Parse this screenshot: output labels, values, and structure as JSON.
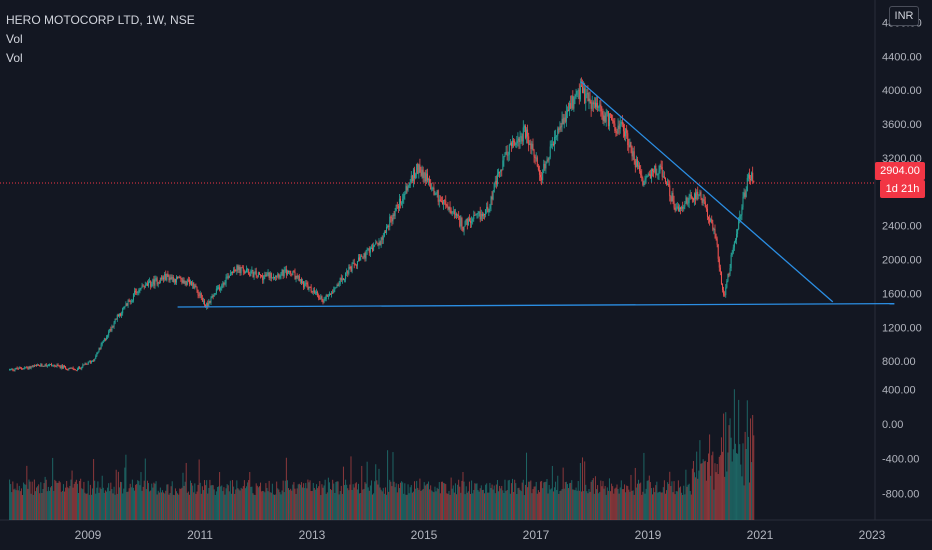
{
  "legend": {
    "title": "HERO MOTOCORP LTD, 1W, NSE",
    "line2": "Vol",
    "line3": "Vol"
  },
  "currency": "INR",
  "last_price_label": "2904.00",
  "countdown_label": "1d 21h",
  "colors": {
    "background": "#131722",
    "up": "#26a69a",
    "down": "#ef5350",
    "trendline": "#2b8ee3",
    "price_line": "#f23645"
  },
  "chart_data": {
    "type": "candlestick",
    "title": "HERO MOTOCORP LTD, 1W, NSE",
    "x_ticks": [
      "2009",
      "2011",
      "2013",
      "2015",
      "2017",
      "2019",
      "2021",
      "2023"
    ],
    "price_axis_ticks": [
      4800,
      4400,
      4000,
      3600,
      3200,
      2800,
      2400,
      2000,
      1600,
      1200,
      800
    ],
    "price_axis_labels": [
      "4800.00",
      "4400.00",
      "4000.00",
      "3600.00",
      "3200.00",
      "2800.00",
      "2400.00",
      "2000.00",
      "1600.00",
      "1200.00",
      "800.00"
    ],
    "volume_axis_ticks": [
      400,
      0,
      -400,
      -800
    ],
    "volume_axis_labels": [
      "400.00",
      "0.00",
      "-400.00",
      "-800.00"
    ],
    "last_price": 2904,
    "price_path": [
      {
        "t": 2007.6,
        "p": 700
      },
      {
        "t": 2008.3,
        "p": 760
      },
      {
        "t": 2008.8,
        "p": 700
      },
      {
        "t": 2009.1,
        "p": 820
      },
      {
        "t": 2009.5,
        "p": 1300
      },
      {
        "t": 2009.9,
        "p": 1650
      },
      {
        "t": 2010.4,
        "p": 1800
      },
      {
        "t": 2010.9,
        "p": 1700
      },
      {
        "t": 2011.1,
        "p": 1450
      },
      {
        "t": 2011.6,
        "p": 1900
      },
      {
        "t": 2012.1,
        "p": 1800
      },
      {
        "t": 2012.6,
        "p": 1850
      },
      {
        "t": 2013.2,
        "p": 1520
      },
      {
        "t": 2013.7,
        "p": 1900
      },
      {
        "t": 2014.2,
        "p": 2200
      },
      {
        "t": 2014.5,
        "p": 2600
      },
      {
        "t": 2014.9,
        "p": 3100
      },
      {
        "t": 2015.3,
        "p": 2700
      },
      {
        "t": 2015.7,
        "p": 2400
      },
      {
        "t": 2016.1,
        "p": 2550
      },
      {
        "t": 2016.5,
        "p": 3300
      },
      {
        "t": 2016.8,
        "p": 3500
      },
      {
        "t": 2017.1,
        "p": 3000
      },
      {
        "t": 2017.4,
        "p": 3500
      },
      {
        "t": 2017.75,
        "p": 4000
      },
      {
        "t": 2018.2,
        "p": 3700
      },
      {
        "t": 2018.6,
        "p": 3500
      },
      {
        "t": 2018.9,
        "p": 2900
      },
      {
        "t": 2019.2,
        "p": 3100
      },
      {
        "t": 2019.5,
        "p": 2600
      },
      {
        "t": 2019.9,
        "p": 2800
      },
      {
        "t": 2020.2,
        "p": 2300
      },
      {
        "t": 2020.35,
        "p": 1550
      },
      {
        "t": 2020.6,
        "p": 2400
      },
      {
        "t": 2020.8,
        "p": 3000
      },
      {
        "t": 2020.9,
        "p": 2904
      }
    ],
    "trendlines": [
      {
        "from": {
          "t": 2010.6,
          "p": 1440
        },
        "to": {
          "t": 2023.4,
          "p": 1480
        }
      },
      {
        "from": {
          "t": 2017.8,
          "p": 4100
        },
        "to": {
          "t": 2022.3,
          "p": 1500
        }
      }
    ],
    "grid": false,
    "volume_pane": true
  }
}
